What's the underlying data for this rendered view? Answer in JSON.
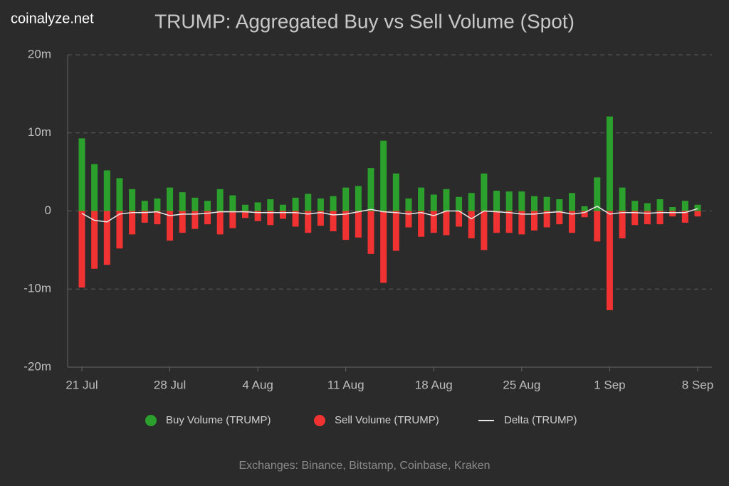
{
  "brand": "coinalyze.net",
  "chart_data": {
    "type": "bar",
    "title": "TRUMP: Aggregated Buy vs Sell Volume (Spot)",
    "categories": [
      "21 Jul",
      null,
      null,
      null,
      null,
      null,
      null,
      "28 Jul",
      null,
      null,
      null,
      null,
      null,
      null,
      "4 Aug",
      null,
      null,
      null,
      null,
      null,
      null,
      "11 Aug",
      null,
      null,
      null,
      null,
      null,
      null,
      "18 Aug",
      null,
      null,
      null,
      null,
      null,
      null,
      "25 Aug",
      null,
      null,
      null,
      null,
      null,
      null,
      "1 Sep",
      null,
      null,
      null,
      null,
      null,
      null,
      "8 Sep"
    ],
    "series": [
      {
        "name": "Buy Volume (TRUMP)",
        "type": "bar",
        "color": "#2ca02c",
        "values": [
          9.3,
          6.0,
          5.2,
          4.2,
          2.8,
          1.3,
          1.6,
          3.0,
          2.4,
          1.7,
          1.3,
          2.8,
          2.0,
          0.8,
          1.1,
          1.5,
          0.8,
          1.7,
          2.2,
          1.6,
          1.9,
          3.0,
          3.2,
          5.5,
          9.0,
          4.8,
          1.6,
          3.0,
          2.1,
          2.8,
          1.8,
          2.3,
          4.8,
          2.6,
          2.5,
          2.5,
          1.9,
          1.8,
          1.5,
          2.3,
          0.6,
          4.3,
          12.1,
          3.0,
          1.3,
          1.0,
          1.5,
          0.5,
          1.3,
          0.8
        ]
      },
      {
        "name": "Sell Volume (TRUMP)",
        "type": "bar",
        "color": "#f03232",
        "values": [
          -9.8,
          -7.4,
          -6.9,
          -4.8,
          -3.0,
          -1.5,
          -1.7,
          -3.8,
          -2.8,
          -2.3,
          -1.7,
          -3.0,
          -2.2,
          -0.9,
          -1.3,
          -1.8,
          -1.0,
          -2.0,
          -2.8,
          -1.9,
          -2.6,
          -3.7,
          -3.4,
          -5.5,
          -9.2,
          -5.1,
          -2.1,
          -3.3,
          -2.8,
          -3.1,
          -2.0,
          -3.5,
          -5.0,
          -2.8,
          -2.8,
          -3.0,
          -2.5,
          -2.1,
          -1.7,
          -2.8,
          -0.8,
          -3.9,
          -12.7,
          -3.5,
          -1.8,
          -1.7,
          -1.7,
          -0.7,
          -1.5,
          -0.7
        ]
      },
      {
        "name": "Delta (TRUMP)",
        "type": "line",
        "color": "#e8e8e8",
        "values": [
          -0.3,
          -1.2,
          -1.4,
          -0.4,
          -0.2,
          -0.2,
          -0.1,
          -0.6,
          -0.4,
          -0.4,
          -0.3,
          -0.1,
          -0.1,
          -0.1,
          -0.2,
          -0.2,
          -0.2,
          -0.2,
          -0.4,
          -0.2,
          -0.5,
          -0.4,
          -0.1,
          0.2,
          -0.1,
          -0.2,
          -0.4,
          -0.2,
          -0.6,
          0.0,
          0.0,
          -1.0,
          0.0,
          -0.1,
          -0.2,
          -0.4,
          -0.4,
          -0.2,
          -0.1,
          -0.4,
          -0.2,
          0.6,
          -0.4,
          -0.2,
          -0.2,
          -0.3,
          -0.2,
          -0.2,
          -0.2,
          0.3
        ]
      }
    ],
    "ylim": [
      -20,
      20
    ],
    "yticks": [
      {
        "value": -20,
        "label": "-20m"
      },
      {
        "value": -10,
        "label": "-10m"
      },
      0,
      {
        "value": 10,
        "label": "10m"
      },
      {
        "value": 20,
        "label": "20m"
      }
    ],
    "grid": true
  },
  "source": "Exchanges: Binance, Bitstamp, Coinbase, Kraken"
}
